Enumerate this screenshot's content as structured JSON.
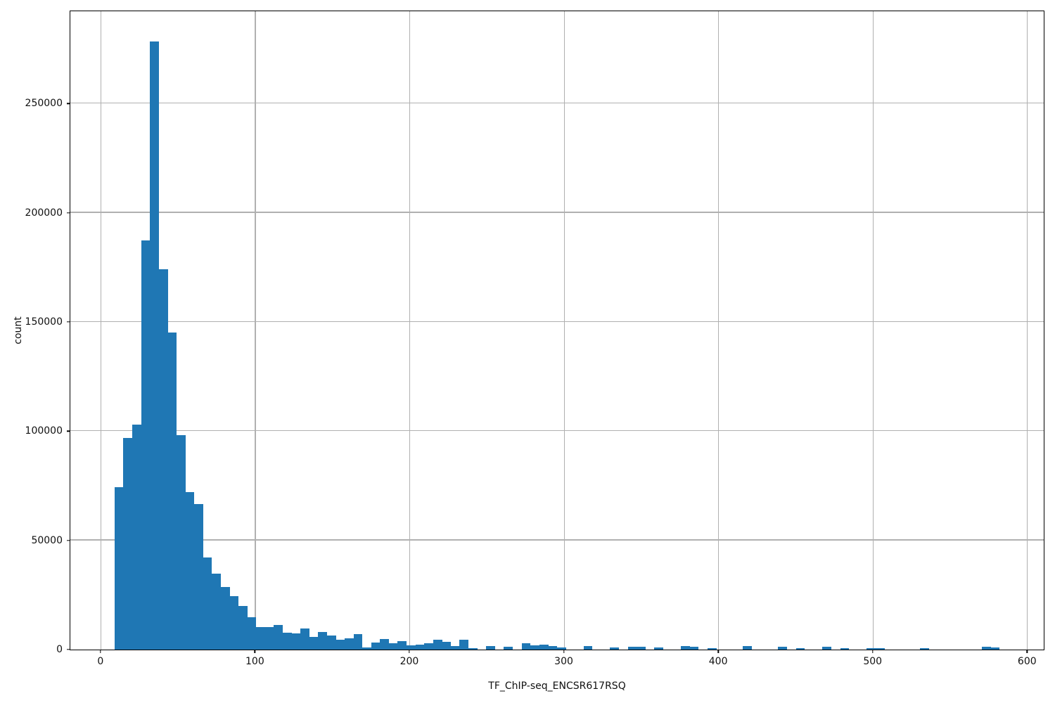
{
  "figure": {
    "background": "#ffffff",
    "frame_color": "#000000"
  },
  "chart_data": {
    "type": "bar",
    "subtype": "histogram",
    "title": "",
    "xlabel": "TF_ChIP-seq_ENCSR617RSQ",
    "ylabel": "count",
    "bar_color": "#1f77b4",
    "grid_color": "#b0b0b0",
    "grid": true,
    "legend": false,
    "xlim": [
      -19.5,
      610.8
    ],
    "ylim": [
      0,
      292200
    ],
    "x_ticks": [
      0,
      100,
      200,
      300,
      400,
      500,
      600
    ],
    "y_ticks": [
      0,
      50000,
      100000,
      150000,
      200000,
      250000
    ],
    "bins": {
      "start": 9.1,
      "width": 5.73
    },
    "counts": [
      74500,
      96900,
      103100,
      187300,
      278500,
      174100,
      145200,
      98200,
      72000,
      66700,
      42100,
      34600,
      28600,
      24600,
      20000,
      14700,
      10400,
      10200,
      11250,
      7700,
      7500,
      9600,
      5900,
      8000,
      6400,
      4500,
      5000,
      7000,
      1060,
      3200,
      4800,
      2900,
      3750,
      1830,
      2350,
      2900,
      4500,
      3450,
      1600,
      4500,
      800,
      0,
      1700,
      0,
      1300,
      0,
      2900,
      1830,
      2150,
      1600,
      960,
      0,
      0,
      1500,
      0,
      0,
      1000,
      0,
      1200,
      1200,
      0,
      1000,
      0,
      0,
      1500,
      1300,
      0,
      800,
      0,
      0,
      0,
      1500,
      0,
      0,
      0,
      1200,
      0,
      700,
      0,
      0,
      1400,
      0,
      700,
      0,
      0,
      800,
      800,
      0,
      0,
      0,
      0,
      700,
      0,
      0,
      0,
      0,
      0,
      0,
      1400,
      1000
    ]
  }
}
